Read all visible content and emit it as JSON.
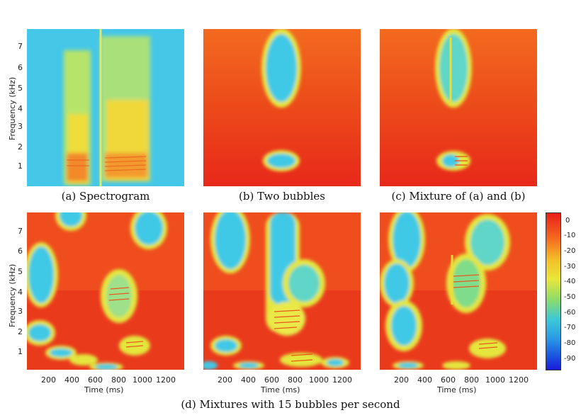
{
  "captions": {
    "a": "(a) Spectrogram",
    "b": "(b) Two bubbles",
    "c": "(c) Mixture of (a) and (b)",
    "d": "(d) Mixtures with 15 bubbles per second"
  },
  "axes": {
    "ylabel": "Frequency (kHz)",
    "xlabel": "Time (ms)",
    "yticks": [
      "1",
      "2",
      "3",
      "4",
      "5",
      "6",
      "7"
    ],
    "xticks": [
      "200",
      "400",
      "600",
      "800",
      "1000",
      "1200"
    ]
  },
  "colorbar": {
    "ticks": [
      "0",
      "-10",
      "-20",
      "-30",
      "-40",
      "-50",
      "-60",
      "-70",
      "-80",
      "-90"
    ]
  },
  "colors": {
    "red": "#e8281a",
    "orange": "#f46d1e",
    "yellow": "#e9e63a",
    "green": "#7fdc6a",
    "cyan": "#3cc4e4",
    "blue": "#2a8fe0"
  },
  "chart_data": [
    {
      "type": "heatmap",
      "panel": "a",
      "caption": "(a) Spectrogram",
      "xlim": [
        0,
        1350
      ],
      "ylim": [
        0,
        8
      ],
      "clim": [
        -95,
        0
      ],
      "note_values": "speech energy bands (yellow/green) on cyan background"
    },
    {
      "type": "heatmap",
      "panel": "b",
      "caption": "(b) Two bubbles",
      "xlim": [
        0,
        1350
      ],
      "ylim": [
        0,
        8
      ],
      "clim": [
        -95,
        0
      ],
      "bubbles": [
        {
          "t": 650,
          "f": 5.6
        },
        {
          "t": 650,
          "f": 1.2
        }
      ]
    },
    {
      "type": "heatmap",
      "panel": "c",
      "caption": "(c) Mixture of (a) and (b)",
      "xlim": [
        0,
        1350
      ],
      "ylim": [
        0,
        8
      ],
      "clim": [
        -95,
        0
      ]
    },
    {
      "type": "heatmap",
      "panel": "d1",
      "caption": "(d) Mixtures with 15 bubbles per second",
      "xlim": [
        0,
        1350
      ],
      "ylim": [
        0,
        8
      ],
      "clim": [
        -95,
        0
      ]
    },
    {
      "type": "heatmap",
      "panel": "d2",
      "caption": "(d) Mixtures with 15 bubbles per second",
      "xlim": [
        0,
        1350
      ],
      "ylim": [
        0,
        8
      ],
      "clim": [
        -95,
        0
      ]
    },
    {
      "type": "heatmap",
      "panel": "d3",
      "caption": "(d) Mixtures with 15 bubbles per second",
      "xlim": [
        0,
        1350
      ],
      "ylim": [
        0,
        8
      ],
      "clim": [
        -95,
        0
      ]
    }
  ]
}
